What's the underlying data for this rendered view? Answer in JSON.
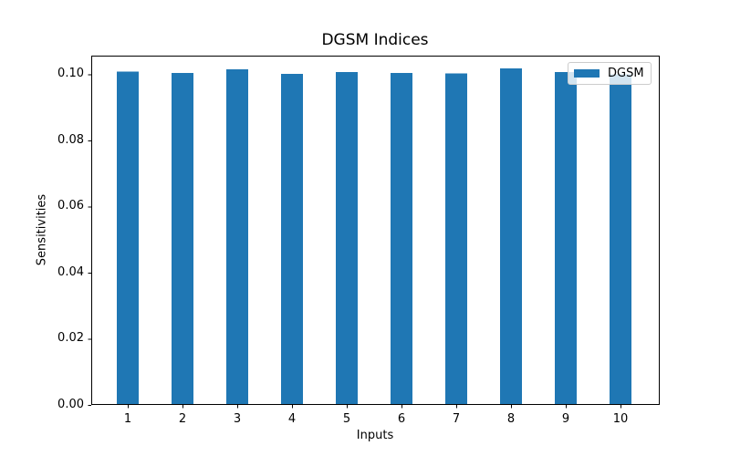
{
  "chart_data": {
    "type": "bar",
    "title": "DGSM Indices",
    "xlabel": "Inputs",
    "ylabel": "Sensitivities",
    "categories": [
      "1",
      "2",
      "3",
      "4",
      "5",
      "6",
      "7",
      "8",
      "9",
      "10"
    ],
    "series": [
      {
        "name": "DGSM",
        "color": "#1f77b4",
        "values": [
          0.1008,
          0.1004,
          0.1014,
          0.1001,
          0.1007,
          0.1003,
          0.1002,
          0.1017,
          0.1007,
          0.1
        ]
      }
    ],
    "ylim": [
      0,
      0.1056
    ],
    "yticks": [
      0,
      0.02,
      0.04,
      0.06,
      0.08,
      0.1
    ],
    "ytick_labels": [
      "0.00",
      "0.02",
      "0.04",
      "0.06",
      "0.08",
      "0.10"
    ],
    "grid": false,
    "legend": {
      "position": "upper right",
      "entries": [
        "DGSM"
      ],
      "frame_alpha": 0.8
    }
  },
  "colors": {
    "bar": "#1f77b4",
    "axis": "#000000",
    "legend_border": "#cccccc",
    "background": "#ffffff"
  }
}
